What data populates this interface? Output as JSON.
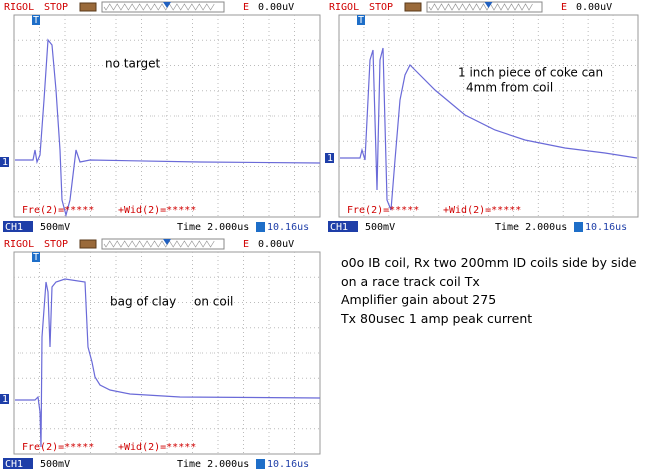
{
  "scopes": [
    {
      "brand": "RIGOL",
      "status": "STOP",
      "trigger_source": "E",
      "trigger_level": "0.00uV",
      "trigger_marker": "T",
      "channel_marker": "1",
      "measure_freq": "Fre(2)=*****",
      "measure_width": "+Wid(2)=*****",
      "channel": "CH1",
      "volts_div": "500mV",
      "timebase": "Time 2.000us",
      "trigger_pos": "10.16us",
      "annotations": [
        "no target"
      ]
    },
    {
      "brand": "RIGOL",
      "status": "STOP",
      "trigger_source": "E",
      "trigger_level": "0.00uV",
      "trigger_marker": "T",
      "channel_marker": "1",
      "measure_freq": "Fre(2)=*****",
      "measure_width": "+Wid(2)=*****",
      "channel": "CH1",
      "volts_div": "500mV",
      "timebase": "Time 2.000us",
      "trigger_pos": "10.16us",
      "annotations": [
        "1 inch piece of coke can",
        "4mm from coil"
      ]
    },
    {
      "brand": "RIGOL",
      "status": "STOP",
      "trigger_source": "E",
      "trigger_level": "0.00uV",
      "trigger_marker": "T",
      "channel_marker": "1",
      "measure_freq": "Fre(2)=*****",
      "measure_width": "+Wid(2)=*****",
      "channel": "CH1",
      "volts_div": "500mV",
      "timebase": "Time 2.000us",
      "trigger_pos": "10.16us",
      "annotations": [
        "bag of clay",
        "on coil"
      ]
    }
  ],
  "notes": [
    "o0o IB coil, Rx two 200mm ID coils side by side",
    "on a race track coil Tx",
    "Amplifier gain about 275",
    "Tx 80usec 1 amp peak current"
  ]
}
